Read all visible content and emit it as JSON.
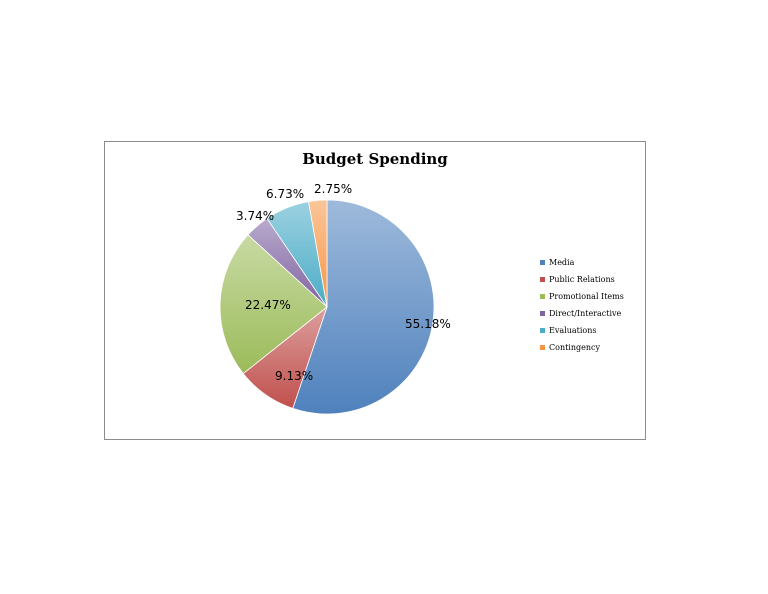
{
  "chart_data": {
    "type": "pie",
    "title": "Budget Spending",
    "categories": [
      "Media",
      "Public Relations",
      "Promotional Items",
      "Direct/Interactive",
      "Evaluations",
      "Contingency"
    ],
    "values": [
      55.18,
      9.13,
      22.47,
      3.74,
      6.73,
      2.75
    ],
    "data_labels": [
      "55.18%",
      "9.13%",
      "22.47%",
      "3.74%",
      "6.73%",
      "2.75%"
    ],
    "colors": [
      "#4f81bd",
      "#c0504d",
      "#9bbb59",
      "#8064a2",
      "#4bacc6",
      "#f79646"
    ],
    "legend": {
      "position": "right",
      "items": [
        "Media",
        "Public Relations",
        "Promotional Items",
        "Direct/Interactive",
        "Evaluations",
        "Contingency"
      ]
    }
  }
}
